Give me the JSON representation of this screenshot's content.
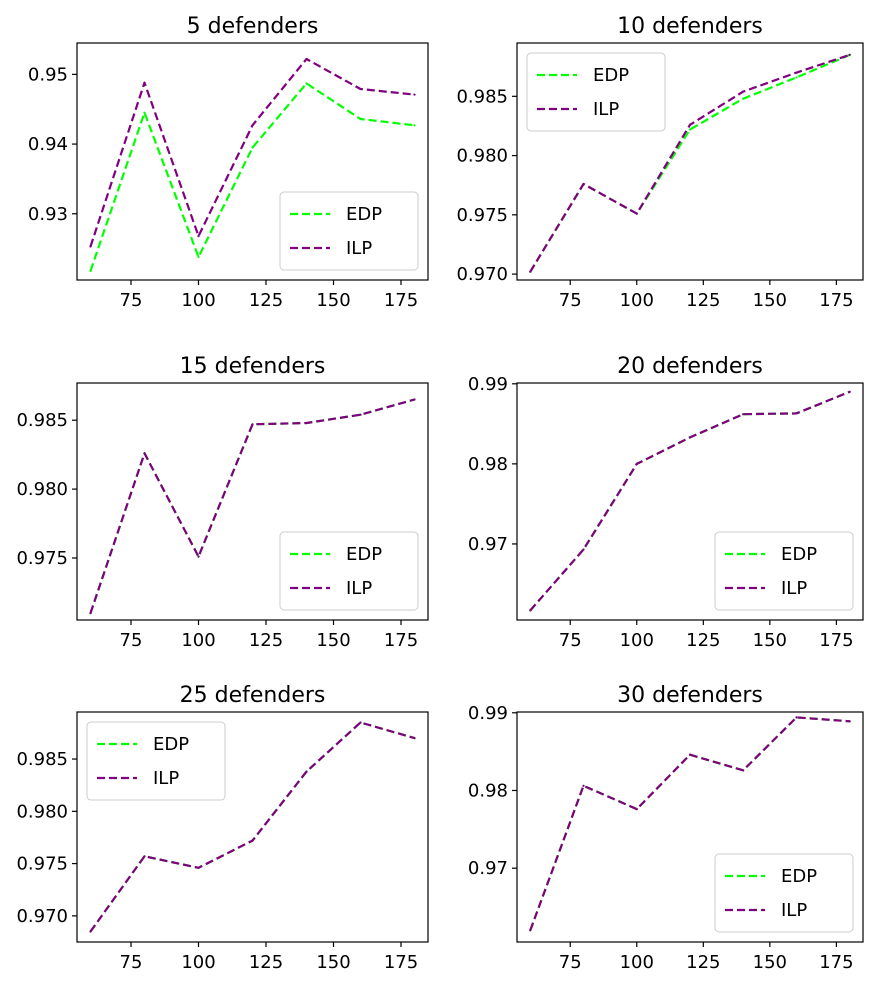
{
  "figure": {
    "background": "#ffffff"
  },
  "chart_data": [
    {
      "type": "line",
      "title": "5 defenders",
      "x": [
        60,
        80,
        100,
        120,
        140,
        160,
        180
      ],
      "xlim": [
        55,
        185
      ],
      "ylim": [
        0.9205,
        0.9545
      ],
      "xticks": [
        75,
        100,
        125,
        150,
        175
      ],
      "yticks": [
        0.93,
        0.94,
        0.95
      ],
      "ytick_decimals": 2,
      "legend": "lower-right",
      "grid": false,
      "series": [
        {
          "name": "EDP",
          "color": "#00ff00",
          "values": [
            0.9218,
            0.9445,
            0.9238,
            0.9395,
            0.9487,
            0.9436,
            0.9427
          ]
        },
        {
          "name": "ILP",
          "color": "#800080",
          "values": [
            0.9253,
            0.9488,
            0.9268,
            0.9427,
            0.9522,
            0.9479,
            0.9471
          ]
        }
      ]
    },
    {
      "type": "line",
      "title": "10 defenders",
      "x": [
        60,
        80,
        100,
        120,
        140,
        160,
        180
      ],
      "xlim": [
        55,
        185
      ],
      "ylim": [
        0.9695,
        0.9895
      ],
      "xticks": [
        75,
        100,
        125,
        150,
        175
      ],
      "yticks": [
        0.97,
        0.975,
        0.98,
        0.985
      ],
      "ytick_decimals": 3,
      "legend": "upper-left",
      "grid": false,
      "series": [
        {
          "name": "EDP",
          "color": "#00ff00",
          "values": [
            0.9702,
            0.9776,
            0.9751,
            0.9822,
            0.9848,
            0.9866,
            0.9885
          ]
        },
        {
          "name": "ILP",
          "color": "#800080",
          "values": [
            0.9702,
            0.9776,
            0.9751,
            0.9826,
            0.9854,
            0.987,
            0.9885
          ]
        }
      ]
    },
    {
      "type": "line",
      "title": "15 defenders",
      "x": [
        60,
        80,
        100,
        120,
        140,
        160,
        180
      ],
      "xlim": [
        55,
        185
      ],
      "ylim": [
        0.9705,
        0.9877
      ],
      "xticks": [
        75,
        100,
        125,
        150,
        175
      ],
      "yticks": [
        0.975,
        0.98,
        0.985
      ],
      "ytick_decimals": 3,
      "legend": "lower-right",
      "grid": false,
      "series": [
        {
          "name": "EDP",
          "color": "#00ff00",
          "values": [
            0.971,
            0.9826,
            0.9751,
            0.9847,
            0.9848,
            0.9854,
            0.9865
          ]
        },
        {
          "name": "ILP",
          "color": "#800080",
          "values": [
            0.971,
            0.9826,
            0.9751,
            0.9847,
            0.9848,
            0.9854,
            0.9865
          ]
        }
      ]
    },
    {
      "type": "line",
      "title": "20 defenders",
      "x": [
        60,
        80,
        100,
        120,
        140,
        160,
        180
      ],
      "xlim": [
        55,
        185
      ],
      "ylim": [
        0.9605,
        0.9901
      ],
      "xticks": [
        75,
        100,
        125,
        150,
        175
      ],
      "yticks": [
        0.97,
        0.98,
        0.99
      ],
      "ytick_decimals": 2,
      "legend": "lower-right",
      "grid": false,
      "series": [
        {
          "name": "EDP",
          "color": "#00ff00",
          "values": [
            0.9617,
            0.9693,
            0.98,
            0.9833,
            0.9862,
            0.9863,
            0.989
          ]
        },
        {
          "name": "ILP",
          "color": "#800080",
          "values": [
            0.9617,
            0.9693,
            0.98,
            0.9833,
            0.9862,
            0.9863,
            0.989
          ]
        }
      ]
    },
    {
      "type": "line",
      "title": "25 defenders",
      "x": [
        60,
        80,
        100,
        120,
        140,
        160,
        180
      ],
      "xlim": [
        55,
        185
      ],
      "ylim": [
        0.9675,
        0.9895
      ],
      "xticks": [
        75,
        100,
        125,
        150,
        175
      ],
      "yticks": [
        0.97,
        0.975,
        0.98,
        0.985
      ],
      "ytick_decimals": 3,
      "legend": "upper-left",
      "grid": false,
      "series": [
        {
          "name": "EDP",
          "color": "#00ff00",
          "values": [
            0.9685,
            0.9757,
            0.9746,
            0.9772,
            0.9838,
            0.9885,
            0.987
          ]
        },
        {
          "name": "ILP",
          "color": "#800080",
          "values": [
            0.9685,
            0.9757,
            0.9746,
            0.9772,
            0.9838,
            0.9885,
            0.987
          ]
        }
      ]
    },
    {
      "type": "line",
      "title": "30 defenders",
      "x": [
        60,
        80,
        100,
        120,
        140,
        160,
        180
      ],
      "xlim": [
        55,
        185
      ],
      "ylim": [
        0.9605,
        0.9901
      ],
      "xticks": [
        75,
        100,
        125,
        150,
        175
      ],
      "yticks": [
        0.97,
        0.98,
        0.99
      ],
      "ytick_decimals": 2,
      "legend": "lower-right",
      "grid": false,
      "series": [
        {
          "name": "EDP",
          "color": "#00ff00",
          "values": [
            0.962,
            0.9806,
            0.9776,
            0.9846,
            0.9826,
            0.9894,
            0.9889
          ]
        },
        {
          "name": "ILP",
          "color": "#800080",
          "values": [
            0.962,
            0.9806,
            0.9776,
            0.9846,
            0.9826,
            0.9894,
            0.9889
          ]
        }
      ]
    }
  ]
}
